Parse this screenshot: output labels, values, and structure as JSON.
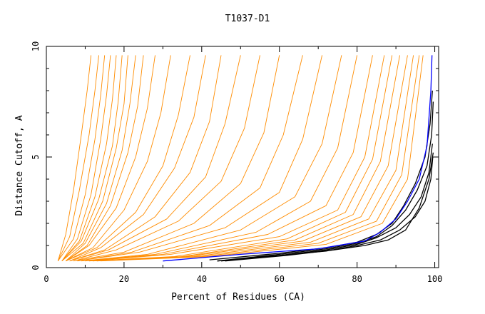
{
  "chart_data": {
    "type": "line",
    "title": "T1037-D1",
    "xlabel": "Percent of Residues (CA)",
    "ylabel": "Distance Cutoff, A",
    "xlim": [
      0,
      101
    ],
    "ylim": [
      0,
      10
    ],
    "x_ticks": [
      "0",
      "20",
      "40",
      "60",
      "80",
      "100"
    ],
    "y_ticks": [
      "0",
      "5",
      "10"
    ],
    "grid": false,
    "legend": "none",
    "colors": {
      "models": "#ff8c00",
      "top_models": "#000000",
      "best_model": "#0000ff"
    },
    "series": [
      {
        "color": "#0000ff",
        "x": [
          30,
          50,
          70,
          82,
          86,
          90,
          93,
          96,
          98,
          99,
          99.3
        ],
        "y": [
          0.3,
          0.6,
          0.85,
          1.2,
          1.6,
          2.2,
          3.0,
          4.0,
          5.5,
          8.0,
          9.6
        ]
      },
      {
        "color": "#000000",
        "x": [
          42,
          60,
          72,
          80,
          85,
          89,
          92,
          95,
          97.5,
          98.8,
          99.4
        ],
        "y": [
          0.35,
          0.65,
          0.9,
          1.15,
          1.5,
          2.0,
          2.8,
          3.8,
          5.0,
          6.5,
          8.0
        ]
      },
      {
        "color": "#000000",
        "x": [
          44,
          60,
          72,
          80,
          85,
          89,
          92.5,
          95.5,
          98,
          99.2,
          99.6
        ],
        "y": [
          0.3,
          0.6,
          0.85,
          1.1,
          1.4,
          1.9,
          2.6,
          3.5,
          4.6,
          6.0,
          7.5
        ]
      },
      {
        "color": "#000000",
        "x": [
          44,
          60,
          72,
          80,
          85,
          90,
          93.5,
          96.5,
          98.5,
          99.4
        ],
        "y": [
          0.3,
          0.55,
          0.8,
          1.05,
          1.35,
          1.8,
          2.4,
          3.2,
          4.3,
          5.6
        ]
      },
      {
        "color": "#000000",
        "x": [
          45,
          60,
          72,
          80,
          86,
          91,
          95,
          97.5,
          99,
          99.5
        ],
        "y": [
          0.3,
          0.55,
          0.75,
          1.0,
          1.25,
          1.7,
          2.3,
          3.0,
          4.0,
          5.0
        ]
      },
      {
        "color": "#000000",
        "x": [
          46,
          62,
          74,
          82,
          88,
          92.5,
          96,
          98.5,
          99.6
        ],
        "y": [
          0.3,
          0.55,
          0.8,
          1.0,
          1.25,
          1.7,
          2.7,
          4.0,
          5.2
        ]
      },
      {
        "color": "#ff8c00",
        "x": [
          3,
          5,
          7,
          9,
          10.5,
          11.5
        ],
        "y": [
          0.3,
          1.5,
          3.5,
          6.0,
          8.0,
          9.6
        ]
      },
      {
        "color": "#ff8c00",
        "x": [
          3,
          6,
          8.5,
          11,
          12.5,
          13.5
        ],
        "y": [
          0.3,
          1.4,
          3.5,
          6.0,
          8.0,
          9.6
        ]
      },
      {
        "color": "#ff8c00",
        "x": [
          3,
          7,
          10,
          12.5,
          14,
          15
        ],
        "y": [
          0.3,
          1.3,
          3.3,
          5.8,
          7.8,
          9.6
        ]
      },
      {
        "color": "#ff8c00",
        "x": [
          4,
          8,
          11.5,
          14,
          15.5,
          16.5
        ],
        "y": [
          0.3,
          1.3,
          3.3,
          5.8,
          7.8,
          9.6
        ]
      },
      {
        "color": "#ff8c00",
        "x": [
          4,
          8.5,
          12.5,
          15.5,
          17,
          18
        ],
        "y": [
          0.3,
          1.2,
          3.2,
          5.6,
          7.6,
          9.6
        ]
      },
      {
        "color": "#ff8c00",
        "x": [
          4,
          9,
          13.5,
          17,
          18.5,
          19.5
        ],
        "y": [
          0.3,
          1.2,
          3.1,
          5.5,
          7.5,
          9.6
        ]
      },
      {
        "color": "#ff8c00",
        "x": [
          4,
          9.5,
          14.5,
          18,
          20,
          21
        ],
        "y": [
          0.3,
          1.1,
          3.0,
          5.4,
          7.4,
          9.6
        ]
      },
      {
        "color": "#ff8c00",
        "x": [
          5,
          10,
          15.5,
          19.5,
          21.5,
          23
        ],
        "y": [
          0.3,
          1.1,
          2.9,
          5.3,
          7.4,
          9.6
        ]
      },
      {
        "color": "#ff8c00",
        "x": [
          5,
          10.5,
          16.5,
          21,
          23.5,
          25
        ],
        "y": [
          0.3,
          1.0,
          2.8,
          5.2,
          7.3,
          9.6
        ]
      },
      {
        "color": "#ff8c00",
        "x": [
          5,
          11,
          18,
          23,
          26,
          28
        ],
        "y": [
          0.3,
          1.0,
          2.7,
          5.0,
          7.2,
          9.6
        ]
      },
      {
        "color": "#ff8c00",
        "x": [
          5,
          12,
          20,
          26,
          29.5,
          32
        ],
        "y": [
          0.3,
          0.9,
          2.6,
          4.8,
          7.0,
          9.6
        ]
      },
      {
        "color": "#ff8c00",
        "x": [
          5,
          13,
          23,
          30,
          34,
          37
        ],
        "y": [
          0.3,
          0.9,
          2.5,
          4.6,
          6.9,
          9.6
        ]
      },
      {
        "color": "#ff8c00",
        "x": [
          6,
          14,
          25,
          33,
          38,
          41
        ],
        "y": [
          0.3,
          0.9,
          2.4,
          4.5,
          6.8,
          9.6
        ]
      },
      {
        "color": "#ff8c00",
        "x": [
          6,
          15,
          28,
          37,
          42,
          45
        ],
        "y": [
          0.3,
          0.8,
          2.3,
          4.3,
          6.6,
          9.6
        ]
      },
      {
        "color": "#ff8c00",
        "x": [
          6,
          16,
          31,
          41,
          46,
          50
        ],
        "y": [
          0.3,
          0.8,
          2.2,
          4.1,
          6.5,
          9.6
        ]
      },
      {
        "color": "#ff8c00",
        "x": [
          7,
          18,
          34,
          45,
          51,
          55
        ],
        "y": [
          0.3,
          0.8,
          2.1,
          3.9,
          6.3,
          9.6
        ]
      },
      {
        "color": "#ff8c00",
        "x": [
          7,
          20,
          38,
          50,
          56,
          60
        ],
        "y": [
          0.3,
          0.7,
          2.0,
          3.8,
          6.1,
          9.6
        ]
      },
      {
        "color": "#ff8c00",
        "x": [
          8,
          22,
          42,
          55,
          61,
          66
        ],
        "y": [
          0.3,
          0.7,
          1.9,
          3.6,
          6.0,
          9.6
        ]
      },
      {
        "color": "#ff8c00",
        "x": [
          8,
          24,
          46,
          60,
          66,
          71
        ],
        "y": [
          0.3,
          0.7,
          1.8,
          3.4,
          5.8,
          9.6
        ]
      },
      {
        "color": "#ff8c00",
        "x": [
          9,
          26,
          50,
          64,
          71,
          76
        ],
        "y": [
          0.3,
          0.6,
          1.7,
          3.2,
          5.6,
          9.6
        ]
      },
      {
        "color": "#ff8c00",
        "x": [
          10,
          28,
          54,
          68,
          75,
          80
        ],
        "y": [
          0.3,
          0.6,
          1.6,
          3.0,
          5.4,
          9.6
        ]
      },
      {
        "color": "#ff8c00",
        "x": [
          10,
          30,
          57,
          72,
          79,
          84
        ],
        "y": [
          0.3,
          0.6,
          1.5,
          2.8,
          5.2,
          9.6
        ]
      },
      {
        "color": "#ff8c00",
        "x": [
          11,
          32,
          60,
          75,
          82,
          87
        ],
        "y": [
          0.3,
          0.6,
          1.4,
          2.6,
          5.0,
          9.6
        ]
      },
      {
        "color": "#ff8c00",
        "x": [
          11,
          33,
          62,
          77,
          84,
          89
        ],
        "y": [
          0.3,
          0.5,
          1.3,
          2.5,
          4.9,
          9.6
        ]
      },
      {
        "color": "#ff8c00",
        "x": [
          12,
          35,
          64,
          79,
          86,
          91
        ],
        "y": [
          0.3,
          0.5,
          1.25,
          2.4,
          4.8,
          9.6
        ]
      },
      {
        "color": "#ff8c00",
        "x": [
          12,
          36,
          66,
          81,
          88,
          93
        ],
        "y": [
          0.3,
          0.5,
          1.2,
          2.3,
          4.6,
          9.6
        ]
      },
      {
        "color": "#ff8c00",
        "x": [
          13,
          38,
          68,
          83,
          90,
          94.5
        ],
        "y": [
          0.3,
          0.5,
          1.15,
          2.2,
          4.4,
          9.6
        ]
      },
      {
        "color": "#ff8c00",
        "x": [
          13,
          40,
          70,
          85,
          91.5,
          96
        ],
        "y": [
          0.3,
          0.5,
          1.1,
          2.1,
          4.2,
          9.6
        ]
      },
      {
        "color": "#ff8c00",
        "x": [
          14,
          42,
          72,
          86.5,
          93,
          97
        ],
        "y": [
          0.3,
          0.5,
          1.05,
          2.0,
          4.0,
          9.6
        ]
      }
    ]
  }
}
